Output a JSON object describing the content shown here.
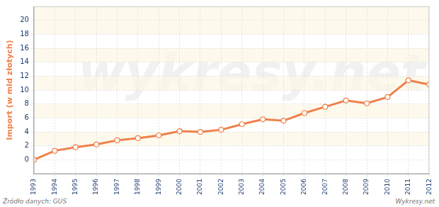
{
  "chart_data": {
    "type": "line",
    "y_label": "Import (w mld złotych)",
    "categories": [
      "1993",
      "1994",
      "1995",
      "1996",
      "1997",
      "1998",
      "1999",
      "2000",
      "2001",
      "2002",
      "2003",
      "2004",
      "2005",
      "2006",
      "2007",
      "2008",
      "2009",
      "2010",
      "2011",
      "2012"
    ],
    "values": [
      0,
      1.3,
      1.8,
      2.2,
      2.8,
      3.1,
      3.5,
      4.1,
      4.0,
      4.3,
      5.1,
      5.8,
      5.6,
      6.7,
      7.6,
      8.5,
      8.1,
      9.0,
      11.4,
      10.8
    ],
    "color": "#f0804a",
    "marker": "circle",
    "ylim": [
      -2,
      22
    ],
    "yticks": [
      0,
      2,
      4,
      6,
      8,
      10,
      12,
      14,
      16,
      18,
      20
    ],
    "grid": true,
    "source": "Źródło danych: GUS",
    "credit": "Wykresy.net",
    "watermark": "wykresy.net"
  }
}
